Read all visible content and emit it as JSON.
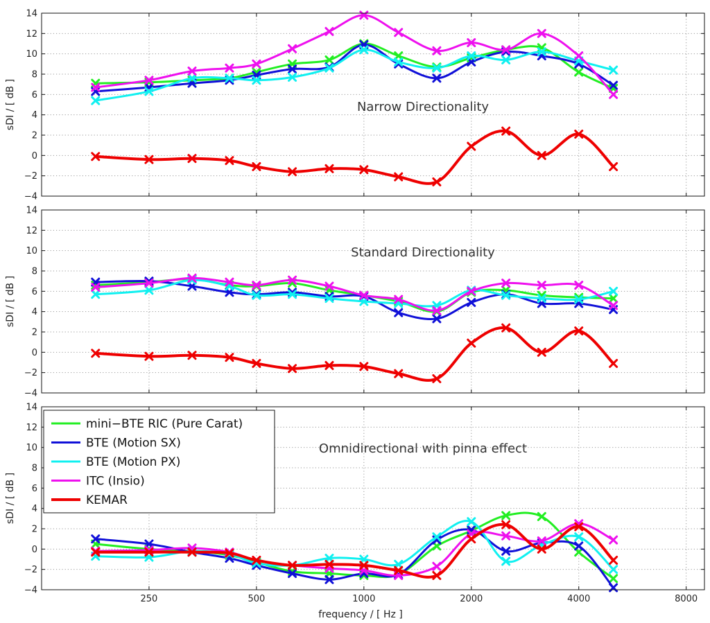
{
  "chart_data": {
    "type": "line",
    "xlabel": "frequency / [ Hz ]",
    "ylabel": "sDI / [ dB ]",
    "x_scale": "log2",
    "xlim": [
      125,
      9000
    ],
    "ylim": [
      -4,
      14
    ],
    "x_ticks": [
      250,
      500,
      1000,
      2000,
      4000,
      8000
    ],
    "x_tick_labels": [
      "250",
      "500",
      "1000",
      "2000",
      "4000",
      "8000"
    ],
    "y_ticks": [
      -4,
      -2,
      0,
      2,
      4,
      6,
      8,
      10,
      12,
      14
    ],
    "y_tick_labels": [
      "−4",
      "−2",
      "0",
      "2",
      "4",
      "6",
      "8",
      "10",
      "12",
      "14"
    ],
    "grid": true,
    "legend_position": "top-left of bottom panel",
    "x": [
      177,
      250,
      330,
      420,
      500,
      630,
      800,
      1000,
      1250,
      1600,
      2000,
      2500,
      3150,
      4000,
      5000
    ],
    "colors": {
      "mini-BTE RIC (Pure Carat)": "#22ee22",
      "BTE (Motion SX)": "#1010d8",
      "BTE (Motion PX)": "#10f0f0",
      "ITC (Insio)": "#ee10ee",
      "KEMAR": "#ee0000"
    },
    "legend": [
      "mini−BTE RIC (Pure Carat)",
      "BTE (Motion SX)",
      "BTE (Motion PX)",
      "ITC (Insio)",
      "KEMAR"
    ],
    "panels": [
      {
        "title": "Narrow Directionality",
        "series": [
          {
            "name": "mini−BTE RIC (Pure Carat)",
            "values": [
              7.1,
              7.2,
              7.4,
              7.6,
              8.2,
              9.0,
              9.4,
              11.0,
              9.8,
              8.7,
              9.6,
              10.4,
              10.6,
              8.2,
              6.6
            ]
          },
          {
            "name": "BTE (Motion SX)",
            "values": [
              6.3,
              6.7,
              7.1,
              7.4,
              7.9,
              8.5,
              8.7,
              10.9,
              9.0,
              7.6,
              9.2,
              10.2,
              9.8,
              9.0,
              6.9
            ]
          },
          {
            "name": "BTE (Motion PX)",
            "values": [
              5.4,
              6.3,
              7.6,
              7.6,
              7.4,
              7.7,
              8.6,
              10.4,
              9.2,
              8.6,
              9.8,
              9.4,
              10.2,
              9.3,
              8.4
            ]
          },
          {
            "name": "ITC (Insio)",
            "values": [
              6.7,
              7.4,
              8.3,
              8.6,
              9.0,
              10.5,
              12.2,
              13.8,
              12.1,
              10.3,
              11.1,
              10.4,
              12.0,
              9.8,
              6.0
            ]
          },
          {
            "name": "KEMAR",
            "values": [
              -0.1,
              -0.4,
              -0.3,
              -0.5,
              -1.1,
              -1.6,
              -1.3,
              -1.4,
              -2.1,
              -2.6,
              0.9,
              2.4,
              0.0,
              2.1,
              -1.1
            ]
          }
        ]
      },
      {
        "title": "Standard Directionality",
        "series": [
          {
            "name": "mini−BTE RIC (Pure Carat)",
            "values": [
              6.6,
              6.9,
              7.2,
              6.6,
              6.5,
              6.8,
              6.1,
              5.6,
              5.0,
              4.0,
              5.9,
              6.1,
              5.6,
              5.4,
              5.3
            ]
          },
          {
            "name": "BTE (Motion SX)",
            "values": [
              6.9,
              7.0,
              6.5,
              5.9,
              5.7,
              5.9,
              5.5,
              5.5,
              3.9,
              3.3,
              4.9,
              5.7,
              4.8,
              4.8,
              4.2
            ]
          },
          {
            "name": "BTE (Motion PX)",
            "values": [
              5.7,
              6.1,
              7.1,
              6.5,
              5.6,
              5.7,
              5.3,
              5.0,
              4.8,
              4.6,
              6.1,
              5.6,
              5.3,
              5.2,
              6.0
            ]
          },
          {
            "name": "ITC (Insio)",
            "values": [
              6.4,
              6.8,
              7.3,
              6.9,
              6.6,
              7.1,
              6.5,
              5.6,
              5.2,
              4.1,
              6.0,
              6.8,
              6.6,
              6.6,
              4.6
            ]
          },
          {
            "name": "KEMAR",
            "values": [
              -0.1,
              -0.4,
              -0.3,
              -0.5,
              -1.1,
              -1.6,
              -1.3,
              -1.4,
              -2.1,
              -2.6,
              0.9,
              2.4,
              0.0,
              2.1,
              -1.1
            ]
          }
        ]
      },
      {
        "title": "Omnidirectional with pinna effect",
        "series": [
          {
            "name": "mini−BTE RIC (Pure Carat)",
            "values": [
              0.5,
              0.0,
              -0.2,
              -0.6,
              -1.3,
              -2.2,
              -2.4,
              -2.6,
              -2.5,
              0.3,
              1.8,
              3.3,
              3.2,
              -0.3,
              -2.9
            ]
          },
          {
            "name": "BTE (Motion SX)",
            "values": [
              1.0,
              0.5,
              -0.3,
              -0.9,
              -1.6,
              -2.4,
              -3.0,
              -2.4,
              -2.5,
              0.9,
              1.9,
              -0.2,
              0.6,
              0.3,
              -3.8
            ]
          },
          {
            "name": "BTE (Motion PX)",
            "values": [
              -0.7,
              -0.8,
              -0.2,
              -0.5,
              -1.4,
              -1.6,
              -0.9,
              -1.0,
              -1.5,
              1.2,
              2.7,
              -1.2,
              0.4,
              1.2,
              -2.0
            ]
          },
          {
            "name": "ITC (Insio)",
            "values": [
              -0.2,
              -0.1,
              0.1,
              -0.3,
              -1.1,
              -1.6,
              -1.9,
              -2.1,
              -2.6,
              -1.7,
              1.5,
              1.3,
              0.8,
              2.5,
              0.9
            ]
          },
          {
            "name": "KEMAR",
            "values": [
              -0.3,
              -0.3,
              -0.3,
              -0.4,
              -1.1,
              -1.6,
              -1.5,
              -1.6,
              -2.1,
              -2.6,
              1.0,
              2.4,
              0.0,
              2.2,
              -1.1
            ]
          }
        ]
      }
    ]
  }
}
